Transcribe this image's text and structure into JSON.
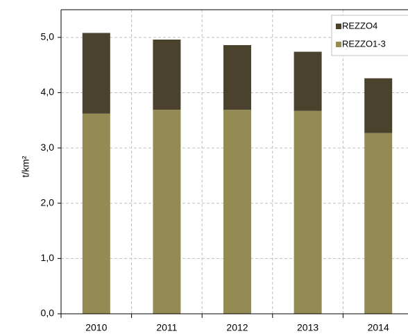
{
  "chart_data": {
    "type": "stacked_bar",
    "y_label": "t/km²",
    "categories": [
      "2010",
      "2011",
      "2012",
      "2013",
      "2014"
    ],
    "series": [
      {
        "name": "REZZO1-3",
        "color": "#948a54",
        "values": [
          3.62,
          3.69,
          3.69,
          3.67,
          3.27
        ]
      },
      {
        "name": "REZZO4",
        "color": "#4a422c",
        "values": [
          1.46,
          1.27,
          1.17,
          1.07,
          0.99
        ]
      }
    ],
    "ylim": [
      0,
      5.5
    ],
    "yticks": [
      {
        "value": 0,
        "label": "0,0"
      },
      {
        "value": 1,
        "label": "1,0"
      },
      {
        "value": 2,
        "label": "2,0"
      },
      {
        "value": 3,
        "label": "3,0"
      },
      {
        "value": 4,
        "label": "4,0"
      },
      {
        "value": 5,
        "label": "5,0"
      }
    ],
    "grid": true,
    "legend": "top-right"
  }
}
